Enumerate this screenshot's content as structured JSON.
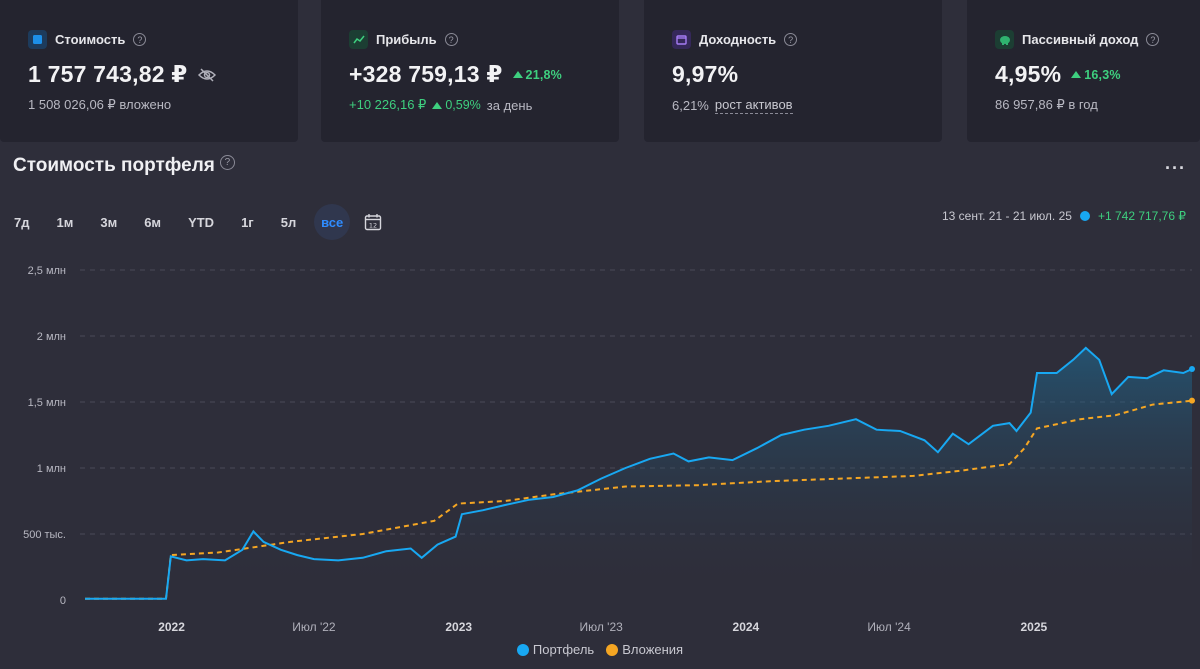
{
  "cards": [
    {
      "title": "Стоимость",
      "value": "1 757 743,82 ₽",
      "sub": "1 508 026,06 ₽ вложено",
      "icon": "wallet-icon",
      "color": "#1d8fe8"
    },
    {
      "title": "Прибыль",
      "value": "+328 759,13 ₽",
      "badge": "21,8%",
      "sub_green": "+10 226,16 ₽",
      "sub_badge": "0,59%",
      "sub_tail": "за день",
      "icon": "chart-up-icon",
      "color": "#2f8a5e"
    },
    {
      "title": "Доходность",
      "value": "9,97%",
      "sub_pct": "6,21%",
      "sub_link": "рост активов",
      "icon": "calendar-icon",
      "color": "#7a4fd6"
    },
    {
      "title": "Пассивный доход",
      "value": "4,95%",
      "badge": "16,3%",
      "sub": "86 957,86 ₽ в год",
      "icon": "piggy-icon",
      "color": "#2fb36f"
    }
  ],
  "section": {
    "title": "Стоимость портфеля",
    "menu": "···"
  },
  "periods": [
    "7д",
    "1м",
    "3м",
    "6м",
    "YTD",
    "1г",
    "5л",
    "все"
  ],
  "active_period": "все",
  "range": {
    "dates": "13 сент. 21 - 21 июл. 25",
    "gain": "+1 742 717,76 ₽"
  },
  "legend": {
    "portfolio": "Портфель",
    "invest": "Вложения"
  },
  "colors": {
    "portfolio": "#18a8f2",
    "invest": "#f5a623"
  },
  "chart_data": {
    "type": "line",
    "y_ticks": [
      "0",
      "500 тыс.",
      "1 млн",
      "1,5 млн",
      "2 млн",
      "2,5 млн"
    ],
    "x_ticks": [
      "2022",
      "Июл '22",
      "2023",
      "Июл '23",
      "2024",
      "Июл '24",
      "2025"
    ],
    "ylim": [
      0,
      2500000
    ],
    "xlim": [
      "2021-09-13",
      "2025-07-21"
    ],
    "grid": true,
    "series": [
      {
        "name": "Портфель",
        "values": [
          [
            "2021-09-13",
            10000
          ],
          [
            "2021-12-25",
            10000
          ],
          [
            "2021-12-31",
            330000
          ],
          [
            "2022-01-20",
            300000
          ],
          [
            "2022-02-10",
            310000
          ],
          [
            "2022-03-10",
            300000
          ],
          [
            "2022-04-01",
            380000
          ],
          [
            "2022-04-15",
            520000
          ],
          [
            "2022-04-28",
            440000
          ],
          [
            "2022-05-20",
            380000
          ],
          [
            "2022-06-10",
            340000
          ],
          [
            "2022-07-01",
            310000
          ],
          [
            "2022-08-01",
            300000
          ],
          [
            "2022-09-01",
            320000
          ],
          [
            "2022-10-01",
            370000
          ],
          [
            "2022-11-01",
            390000
          ],
          [
            "2022-11-15",
            320000
          ],
          [
            "2022-12-05",
            420000
          ],
          [
            "2022-12-28",
            480000
          ],
          [
            "2023-01-05",
            650000
          ],
          [
            "2023-02-01",
            680000
          ],
          [
            "2023-03-01",
            720000
          ],
          [
            "2023-04-01",
            760000
          ],
          [
            "2023-05-01",
            780000
          ],
          [
            "2023-06-01",
            830000
          ],
          [
            "2023-07-01",
            920000
          ],
          [
            "2023-08-01",
            1000000
          ],
          [
            "2023-09-01",
            1070000
          ],
          [
            "2023-10-01",
            1110000
          ],
          [
            "2023-10-20",
            1050000
          ],
          [
            "2023-11-15",
            1080000
          ],
          [
            "2023-12-15",
            1060000
          ],
          [
            "2024-01-15",
            1150000
          ],
          [
            "2024-02-15",
            1250000
          ],
          [
            "2024-03-15",
            1290000
          ],
          [
            "2024-04-15",
            1320000
          ],
          [
            "2024-05-20",
            1370000
          ],
          [
            "2024-06-15",
            1290000
          ],
          [
            "2024-07-15",
            1280000
          ],
          [
            "2024-08-15",
            1210000
          ],
          [
            "2024-09-01",
            1120000
          ],
          [
            "2024-09-20",
            1260000
          ],
          [
            "2024-10-10",
            1180000
          ],
          [
            "2024-11-10",
            1320000
          ],
          [
            "2024-12-01",
            1340000
          ],
          [
            "2024-12-10",
            1280000
          ],
          [
            "2024-12-28",
            1420000
          ],
          [
            "2025-01-05",
            1720000
          ],
          [
            "2025-01-30",
            1720000
          ],
          [
            "2025-02-20",
            1820000
          ],
          [
            "2025-03-08",
            1910000
          ],
          [
            "2025-03-25",
            1820000
          ],
          [
            "2025-04-10",
            1560000
          ],
          [
            "2025-05-01",
            1690000
          ],
          [
            "2025-05-25",
            1680000
          ],
          [
            "2025-06-15",
            1740000
          ],
          [
            "2025-07-10",
            1720000
          ],
          [
            "2025-07-21",
            1750000
          ]
        ]
      },
      {
        "name": "Вложения",
        "values": [
          [
            "2021-09-13",
            10000
          ],
          [
            "2021-12-25",
            10000
          ],
          [
            "2021-12-31",
            340000
          ],
          [
            "2022-03-01",
            360000
          ],
          [
            "2022-06-01",
            440000
          ],
          [
            "2022-09-01",
            500000
          ],
          [
            "2022-12-01",
            600000
          ],
          [
            "2022-12-31",
            730000
          ],
          [
            "2023-03-01",
            750000
          ],
          [
            "2023-05-01",
            800000
          ],
          [
            "2023-08-01",
            860000
          ],
          [
            "2023-11-01",
            870000
          ],
          [
            "2024-02-01",
            900000
          ],
          [
            "2024-05-01",
            920000
          ],
          [
            "2024-08-01",
            940000
          ],
          [
            "2024-10-01",
            980000
          ],
          [
            "2024-12-01",
            1030000
          ],
          [
            "2024-12-20",
            1150000
          ],
          [
            "2025-01-05",
            1300000
          ],
          [
            "2025-03-01",
            1370000
          ],
          [
            "2025-04-15",
            1400000
          ],
          [
            "2025-06-01",
            1480000
          ],
          [
            "2025-07-21",
            1510000
          ]
        ]
      }
    ]
  }
}
